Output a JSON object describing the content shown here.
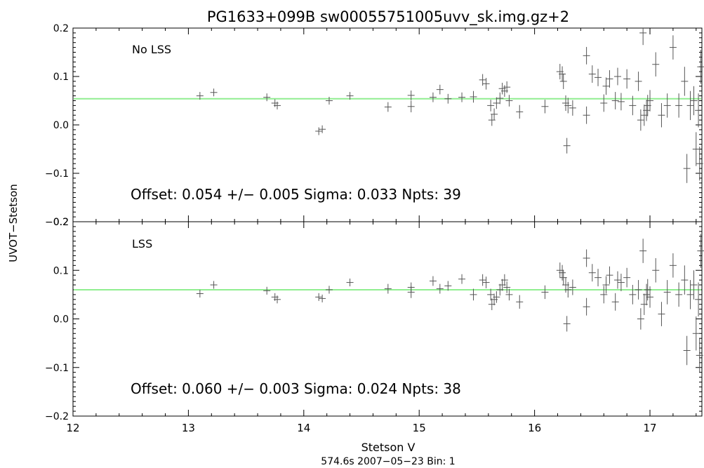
{
  "figure": {
    "title": "PG1633+099B sw00055751005uvv_sk.img.gz+2",
    "ylabel": "UVOT−Stetson",
    "xlabel": "Stetson V",
    "footer": "574.6s 2007−05−23 Bin: 1"
  },
  "chart_data": [
    {
      "type": "scatter",
      "panel": "top",
      "label": "No LSS",
      "annotation": "Offset:  0.054 +/−  0.005 Sigma:  0.033 Npts:  39",
      "offset_line": 0.054,
      "fit_line_color": "#90ee90",
      "marker_color": "#555555",
      "xlim": [
        12,
        17.45
      ],
      "ylim": [
        -0.2,
        0.2
      ],
      "x_ticks": [
        12,
        13,
        14,
        15,
        16,
        17
      ],
      "y_ticks": [
        -0.2,
        -0.1,
        0.0,
        0.1,
        0.2
      ],
      "y_tick_labels": [
        "−0.2",
        "−0.1",
        "0.0",
        "0.1",
        "0.2"
      ],
      "points": [
        [
          13.1,
          0.06,
          0.008
        ],
        [
          13.22,
          0.067,
          0.008
        ],
        [
          13.68,
          0.057,
          0.008
        ],
        [
          13.75,
          0.045,
          0.008
        ],
        [
          13.77,
          0.04,
          0.008
        ],
        [
          14.13,
          -0.013,
          0.008
        ],
        [
          14.16,
          -0.009,
          0.008
        ],
        [
          14.22,
          0.05,
          0.008
        ],
        [
          14.4,
          0.06,
          0.008
        ],
        [
          14.73,
          0.037,
          0.01
        ],
        [
          14.93,
          0.038,
          0.012
        ],
        [
          14.93,
          0.061,
          0.01
        ],
        [
          15.12,
          0.057,
          0.01
        ],
        [
          15.18,
          0.073,
          0.01
        ],
        [
          15.25,
          0.054,
          0.01
        ],
        [
          15.37,
          0.057,
          0.01
        ],
        [
          15.47,
          0.058,
          0.012
        ],
        [
          15.55,
          0.093,
          0.012
        ],
        [
          15.58,
          0.085,
          0.012
        ],
        [
          15.62,
          0.04,
          0.012
        ],
        [
          15.63,
          0.01,
          0.012
        ],
        [
          15.65,
          0.022,
          0.012
        ],
        [
          15.67,
          0.045,
          0.012
        ],
        [
          15.7,
          0.055,
          0.012
        ],
        [
          15.72,
          0.075,
          0.012
        ],
        [
          15.74,
          0.07,
          0.012
        ],
        [
          15.76,
          0.078,
          0.012
        ],
        [
          15.78,
          0.05,
          0.012
        ],
        [
          15.87,
          0.027,
          0.014
        ],
        [
          16.09,
          0.038,
          0.014
        ],
        [
          16.22,
          0.11,
          0.016
        ],
        [
          16.24,
          0.105,
          0.016
        ],
        [
          16.25,
          0.09,
          0.016
        ],
        [
          16.27,
          0.045,
          0.016
        ],
        [
          16.29,
          0.04,
          0.016
        ],
        [
          16.28,
          -0.043,
          0.016
        ],
        [
          16.33,
          0.035,
          0.016
        ],
        [
          16.45,
          0.02,
          0.018
        ],
        [
          16.45,
          0.143,
          0.018
        ],
        [
          16.5,
          0.105,
          0.018
        ],
        [
          16.55,
          0.098,
          0.018
        ],
        [
          16.6,
          0.045,
          0.018
        ],
        [
          16.62,
          0.08,
          0.018
        ],
        [
          16.65,
          0.095,
          0.018
        ],
        [
          16.7,
          0.05,
          0.018
        ],
        [
          16.72,
          0.1,
          0.018
        ],
        [
          16.75,
          0.048,
          0.018
        ],
        [
          16.8,
          0.095,
          0.02
        ],
        [
          16.85,
          0.04,
          0.02
        ],
        [
          16.9,
          0.09,
          0.02
        ],
        [
          16.92,
          0.01,
          0.022
        ],
        [
          16.94,
          0.19,
          0.025
        ],
        [
          16.95,
          0.02,
          0.022
        ],
        [
          16.97,
          0.03,
          0.022
        ],
        [
          16.98,
          0.04,
          0.022
        ],
        [
          17.0,
          0.05,
          0.022
        ],
        [
          17.05,
          0.125,
          0.025
        ],
        [
          17.1,
          0.02,
          0.025
        ],
        [
          17.15,
          0.04,
          0.025
        ],
        [
          17.2,
          0.16,
          0.025
        ],
        [
          17.25,
          0.04,
          0.025
        ],
        [
          17.3,
          0.09,
          0.03
        ],
        [
          17.32,
          -0.09,
          0.03
        ],
        [
          17.35,
          0.04,
          0.03
        ],
        [
          17.38,
          0.05,
          0.03
        ],
        [
          17.4,
          -0.05,
          0.035
        ],
        [
          17.42,
          0.03,
          0.035
        ],
        [
          17.43,
          -0.08,
          0.035
        ],
        [
          17.44,
          0.12,
          0.035
        ]
      ]
    },
    {
      "type": "scatter",
      "panel": "bottom",
      "label": "LSS",
      "annotation": "Offset:  0.060 +/−  0.003 Sigma:  0.024 Npts:  38",
      "offset_line": 0.06,
      "fit_line_color": "#90ee90",
      "marker_color": "#555555",
      "xlim": [
        12,
        17.45
      ],
      "ylim": [
        -0.2,
        0.2
      ],
      "x_ticks": [
        12,
        13,
        14,
        15,
        16,
        17
      ],
      "x_tick_labels": [
        "12",
        "13",
        "14",
        "15",
        "16",
        "17"
      ],
      "y_ticks": [
        -0.2,
        -0.1,
        0.0,
        0.1,
        0.2
      ],
      "y_tick_labels": [
        "−0.2",
        "−0.1",
        "0.0",
        "0.1",
        "0.2"
      ],
      "points": [
        [
          13.1,
          0.052,
          0.008
        ],
        [
          13.22,
          0.07,
          0.008
        ],
        [
          13.68,
          0.058,
          0.008
        ],
        [
          13.75,
          0.045,
          0.008
        ],
        [
          13.77,
          0.04,
          0.008
        ],
        [
          14.13,
          0.045,
          0.008
        ],
        [
          14.16,
          0.042,
          0.008
        ],
        [
          14.22,
          0.06,
          0.008
        ],
        [
          14.4,
          0.075,
          0.008
        ],
        [
          14.73,
          0.062,
          0.01
        ],
        [
          14.93,
          0.055,
          0.012
        ],
        [
          14.93,
          0.065,
          0.01
        ],
        [
          15.12,
          0.078,
          0.01
        ],
        [
          15.18,
          0.062,
          0.01
        ],
        [
          15.25,
          0.068,
          0.01
        ],
        [
          15.37,
          0.082,
          0.01
        ],
        [
          15.47,
          0.05,
          0.012
        ],
        [
          15.55,
          0.08,
          0.012
        ],
        [
          15.58,
          0.075,
          0.012
        ],
        [
          15.62,
          0.05,
          0.012
        ],
        [
          15.63,
          0.03,
          0.012
        ],
        [
          15.65,
          0.04,
          0.012
        ],
        [
          15.67,
          0.045,
          0.012
        ],
        [
          15.7,
          0.06,
          0.012
        ],
        [
          15.72,
          0.07,
          0.012
        ],
        [
          15.74,
          0.08,
          0.012
        ],
        [
          15.76,
          0.065,
          0.012
        ],
        [
          15.78,
          0.05,
          0.012
        ],
        [
          15.87,
          0.035,
          0.014
        ],
        [
          16.09,
          0.055,
          0.014
        ],
        [
          16.22,
          0.1,
          0.016
        ],
        [
          16.24,
          0.095,
          0.016
        ],
        [
          16.25,
          0.085,
          0.016
        ],
        [
          16.27,
          0.07,
          0.016
        ],
        [
          16.29,
          0.06,
          0.016
        ],
        [
          16.28,
          -0.01,
          0.016
        ],
        [
          16.33,
          0.065,
          0.016
        ],
        [
          16.45,
          0.025,
          0.018
        ],
        [
          16.45,
          0.125,
          0.018
        ],
        [
          16.5,
          0.095,
          0.018
        ],
        [
          16.55,
          0.085,
          0.018
        ],
        [
          16.6,
          0.05,
          0.018
        ],
        [
          16.62,
          0.07,
          0.018
        ],
        [
          16.65,
          0.09,
          0.018
        ],
        [
          16.7,
          0.035,
          0.018
        ],
        [
          16.72,
          0.08,
          0.018
        ],
        [
          16.75,
          0.075,
          0.018
        ],
        [
          16.8,
          0.085,
          0.02
        ],
        [
          16.85,
          0.05,
          0.02
        ],
        [
          16.9,
          0.06,
          0.02
        ],
        [
          16.92,
          0.0,
          0.022
        ],
        [
          16.94,
          0.14,
          0.025
        ],
        [
          16.95,
          0.03,
          0.022
        ],
        [
          16.97,
          0.05,
          0.022
        ],
        [
          16.98,
          0.06,
          0.022
        ],
        [
          17.0,
          0.045,
          0.022
        ],
        [
          17.05,
          0.1,
          0.025
        ],
        [
          17.1,
          0.01,
          0.025
        ],
        [
          17.15,
          0.055,
          0.025
        ],
        [
          17.2,
          0.11,
          0.025
        ],
        [
          17.25,
          0.05,
          0.025
        ],
        [
          17.3,
          0.08,
          0.03
        ],
        [
          17.32,
          -0.065,
          0.03
        ],
        [
          17.35,
          0.05,
          0.03
        ],
        [
          17.38,
          0.07,
          0.03
        ],
        [
          17.4,
          -0.03,
          0.035
        ],
        [
          17.42,
          0.04,
          0.035
        ],
        [
          17.43,
          -0.075,
          0.035
        ],
        [
          17.44,
          0.14,
          0.035
        ]
      ]
    }
  ]
}
